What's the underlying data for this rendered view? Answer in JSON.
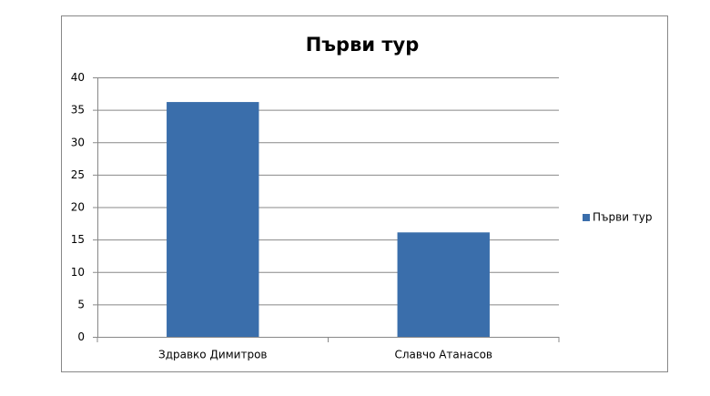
{
  "chart_data": {
    "type": "bar",
    "title": "Първи тур",
    "categories": [
      "Здравко Димитров",
      "Славчо Атанасов"
    ],
    "series": [
      {
        "name": "Първи тур",
        "color": "#3a6eab",
        "values": [
          36.2,
          16.1
        ]
      }
    ],
    "ylim": [
      0,
      40
    ],
    "yticks": [
      0,
      5,
      10,
      15,
      20,
      25,
      30,
      35,
      40
    ],
    "grid": true,
    "legend": "right"
  }
}
